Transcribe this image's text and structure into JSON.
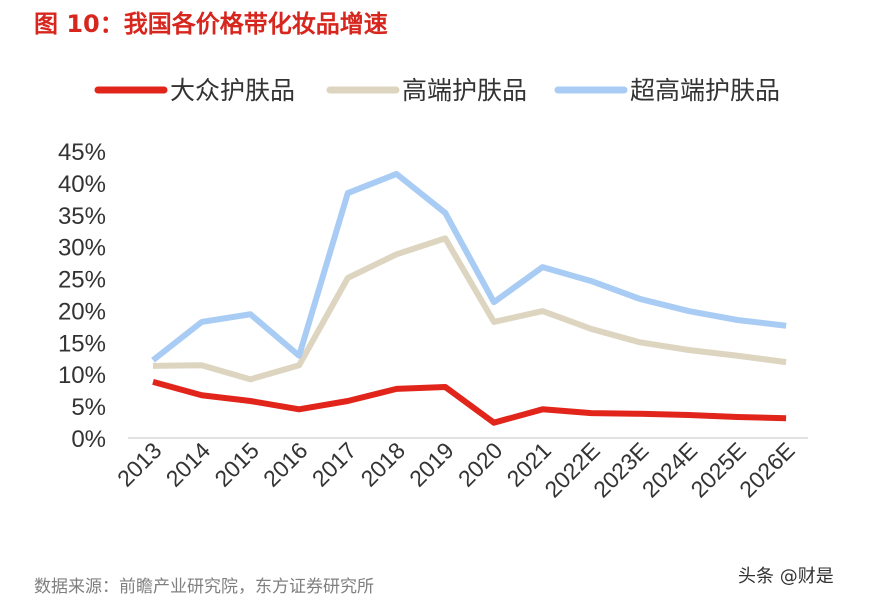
{
  "title": "图 10：我国各价格带化妆品增速",
  "source": "数据来源：前瞻产业研究院，东方证券研究所",
  "watermark": "头条 @财是",
  "chart_data": {
    "type": "line",
    "title": "图 10：我国各价格带化妆品增速",
    "categories": [
      "2013",
      "2014",
      "2015",
      "2016",
      "2017",
      "2018",
      "2019",
      "2020",
      "2021",
      "2022E",
      "2023E",
      "2024E",
      "2025E",
      "2026E"
    ],
    "ylim": [
      0,
      45
    ],
    "yticks": [
      "0%",
      "5%",
      "10%",
      "15%",
      "20%",
      "25%",
      "30%",
      "35%",
      "40%",
      "45%"
    ],
    "legend": "top",
    "grid": false,
    "series": [
      {
        "name": "大众护肤品",
        "color": "#e1251b",
        "values": [
          8.8,
          6.7,
          5.8,
          4.5,
          5.8,
          7.7,
          8.0,
          2.4,
          4.5,
          3.9,
          3.8,
          3.6,
          3.3,
          3.1
        ]
      },
      {
        "name": "高端护肤品",
        "color": "#ddd5c0",
        "values": [
          11.3,
          11.4,
          9.2,
          11.4,
          25.1,
          28.8,
          31.3,
          18.2,
          19.9,
          17.1,
          15.0,
          13.8,
          12.9,
          11.9
        ]
      },
      {
        "name": "超高端护肤品",
        "color": "#a9ccf5",
        "values": [
          12.2,
          18.2,
          19.4,
          12.9,
          38.4,
          41.4,
          35.3,
          21.3,
          26.8,
          24.6,
          21.8,
          19.9,
          18.5,
          17.6
        ]
      }
    ]
  }
}
